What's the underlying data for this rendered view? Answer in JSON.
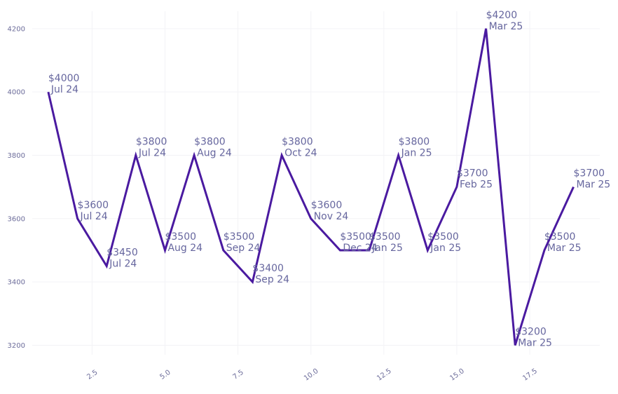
{
  "chart_data": {
    "type": "line",
    "title": "",
    "xlabel": "",
    "ylabel": "",
    "xlim": [
      0.45,
      19.9
    ],
    "ylim": [
      3170,
      4255
    ],
    "x_ticks": [
      {
        "value": 2.5,
        "label": "2.5"
      },
      {
        "value": 5.0,
        "label": "5.0"
      },
      {
        "value": 7.5,
        "label": "7.5"
      },
      {
        "value": 10.0,
        "label": "10.0"
      },
      {
        "value": 12.5,
        "label": "12.5"
      },
      {
        "value": 15.0,
        "label": "15.0"
      },
      {
        "value": 17.5,
        "label": "17.5"
      }
    ],
    "y_ticks": [
      {
        "value": 3200,
        "label": "3200"
      },
      {
        "value": 3400,
        "label": "3400"
      },
      {
        "value": 3600,
        "label": "3600"
      },
      {
        "value": 3800,
        "label": "3800"
      },
      {
        "value": 4000,
        "label": "4000"
      },
      {
        "value": 4200,
        "label": "4200"
      }
    ],
    "grid": true,
    "series": [
      {
        "name": "value",
        "color": "#4a1aa0",
        "points": [
          {
            "x": 1,
            "y": 4000,
            "price": "$4000",
            "date": "Jul 24"
          },
          {
            "x": 2,
            "y": 3600,
            "price": "$3600",
            "date": "Jul 24"
          },
          {
            "x": 3,
            "y": 3450,
            "price": "$3450",
            "date": "Jul 24"
          },
          {
            "x": 4,
            "y": 3800,
            "price": "$3800",
            "date": "Jul 24"
          },
          {
            "x": 5,
            "y": 3500,
            "price": "$3500",
            "date": "Aug 24"
          },
          {
            "x": 6,
            "y": 3800,
            "price": "$3800",
            "date": "Aug 24"
          },
          {
            "x": 7,
            "y": 3500,
            "price": "$3500",
            "date": "Sep 24"
          },
          {
            "x": 8,
            "y": 3400,
            "price": "$3400",
            "date": "Sep 24"
          },
          {
            "x": 9,
            "y": 3800,
            "price": "$3800",
            "date": "Oct 24"
          },
          {
            "x": 10,
            "y": 3600,
            "price": "$3600",
            "date": "Nov 24"
          },
          {
            "x": 11,
            "y": 3500,
            "price": "$3500",
            "date": "Dec 24"
          },
          {
            "x": 12,
            "y": 3500,
            "price": "$3500",
            "date": "Jan 25"
          },
          {
            "x": 13,
            "y": 3800,
            "price": "$3800",
            "date": "Jan 25"
          },
          {
            "x": 14,
            "y": 3500,
            "price": "$3500",
            "date": "Jan 25"
          },
          {
            "x": 15,
            "y": 3700,
            "price": "$3700",
            "date": "Feb 25"
          },
          {
            "x": 16,
            "y": 4200,
            "price": "$4200",
            "date": "Mar 25"
          },
          {
            "x": 17,
            "y": 3200,
            "price": "$3200",
            "date": "Mar 25"
          },
          {
            "x": 18,
            "y": 3500,
            "price": "$3500",
            "date": "Mar 25"
          },
          {
            "x": 19,
            "y": 3700,
            "price": "$3700",
            "date": "Mar 25"
          }
        ]
      }
    ]
  }
}
